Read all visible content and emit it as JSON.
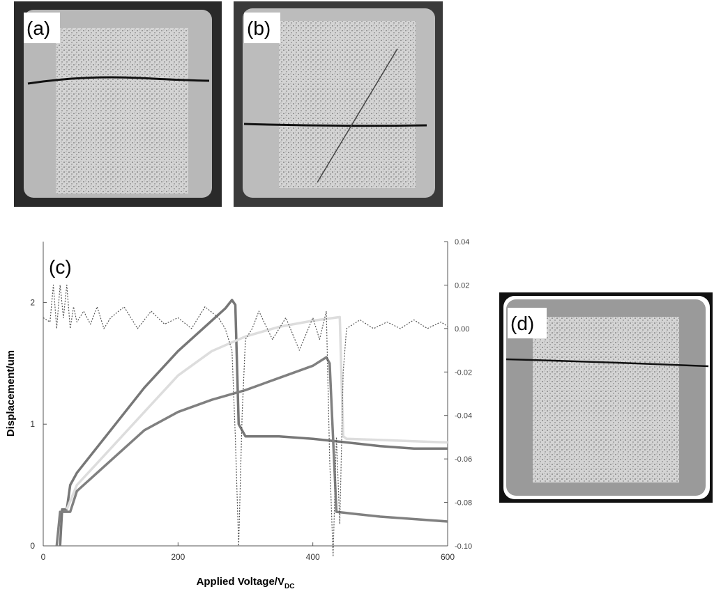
{
  "panels": {
    "a": "(a)",
    "b": "(b)",
    "d": "(d)"
  },
  "chart_data": {
    "type": "line",
    "panel_label": "(c)",
    "y_label": "Displacement/um",
    "x_label": "Applied Voltage/V",
    "x_label_sub": "DC",
    "xlim": [
      0,
      600
    ],
    "xticks": [
      0,
      200,
      400,
      600
    ],
    "ylim": [
      0,
      2.5
    ],
    "yticks": [
      0,
      1,
      2
    ],
    "y2lim": [
      -0.1,
      0.04
    ],
    "y2ticks": [
      {
        "value": -0.1,
        "label": "-0.10"
      },
      -0.08,
      -0.06,
      -0.04,
      -0.02,
      {
        "value": 0,
        "label": "0.00"
      },
      0.02,
      0.04
    ],
    "series": [
      {
        "color": "#777777",
        "x": [
          25,
          28,
          35,
          40,
          50,
          100,
          150,
          200,
          250,
          270,
          280,
          285,
          290,
          300,
          350,
          400,
          450,
          500,
          550,
          600
        ],
        "values": [
          0,
          0.3,
          0.3,
          0.5,
          0.6,
          0.95,
          1.3,
          1.6,
          1.85,
          1.95,
          2.02,
          1.98,
          1.0,
          0.9,
          0.9,
          0.88,
          0.85,
          0.82,
          0.8,
          0.8
        ]
      },
      {
        "color": "#dddddd",
        "x": [
          35,
          50,
          100,
          150,
          200,
          250,
          300,
          350,
          400,
          440,
          445,
          450,
          500,
          550,
          600
        ],
        "values": [
          0.3,
          0.5,
          0.8,
          1.1,
          1.4,
          1.6,
          1.72,
          1.8,
          1.85,
          1.88,
          0.9,
          0.88,
          0.87,
          0.86,
          0.85
        ]
      },
      {
        "color": "#808080",
        "x": [
          20,
          25,
          40,
          50,
          100,
          150,
          200,
          250,
          300,
          350,
          400,
          420,
          425,
          435,
          450,
          500,
          550,
          600
        ],
        "values": [
          0,
          0.28,
          0.28,
          0.45,
          0.7,
          0.95,
          1.1,
          1.2,
          1.28,
          1.38,
          1.48,
          1.55,
          1.5,
          0.28,
          0.27,
          0.24,
          0.22,
          0.2
        ]
      },
      {
        "color": "#555555",
        "dash": true,
        "axis": "y2",
        "x": [
          0,
          10,
          15,
          20,
          25,
          30,
          35,
          40,
          45,
          50,
          60,
          70,
          80,
          90,
          100,
          120,
          140,
          160,
          180,
          200,
          220,
          240,
          260,
          270,
          280,
          285,
          290,
          295,
          300,
          310,
          320,
          340,
          360,
          380,
          400,
          410,
          420,
          425,
          430,
          435,
          440,
          445,
          450,
          470,
          490,
          510,
          530,
          550,
          570,
          590,
          600
        ],
        "values": [
          0.005,
          0.003,
          0.02,
          0.0,
          0.02,
          0.005,
          0.02,
          0.0,
          0.01,
          0.003,
          0.008,
          0.002,
          0.01,
          0.0,
          0.005,
          0.01,
          0.0,
          0.008,
          0.002,
          0.005,
          0.0,
          0.01,
          0.005,
          0.0,
          -0.01,
          -0.05,
          -0.1,
          -0.04,
          -0.005,
          0.0,
          0.008,
          -0.005,
          0.005,
          -0.01,
          0.005,
          -0.005,
          0.008,
          -0.06,
          -0.105,
          -0.05,
          -0.09,
          -0.02,
          0.0,
          0.004,
          0.0,
          0.003,
          0.0,
          0.004,
          0.0,
          0.003,
          0.001
        ]
      }
    ]
  }
}
